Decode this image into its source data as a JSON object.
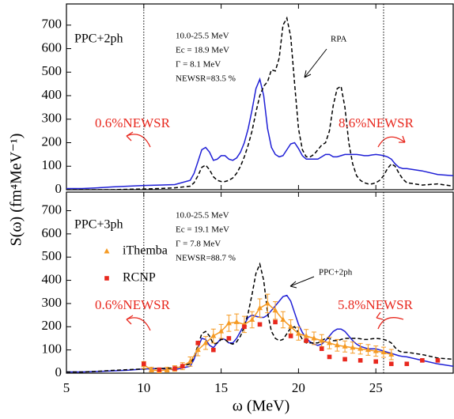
{
  "chart_data": [
    {
      "type": "line",
      "ylabel": "S(ω) (fm⁴MeV⁻¹)",
      "x": [
        5,
        6,
        7,
        8,
        9,
        10,
        11,
        12,
        13,
        13.25,
        13.5,
        13.75,
        14,
        14.25,
        14.5,
        14.75,
        15,
        15.25,
        15.5,
        15.75,
        16,
        16.25,
        16.5,
        16.75,
        17,
        17.25,
        17.5,
        17.75,
        18,
        18.25,
        18.5,
        18.75,
        19,
        19.25,
        19.5,
        19.75,
        20,
        20.25,
        20.5,
        20.75,
        21,
        21.25,
        21.5,
        21.75,
        22,
        22.25,
        22.5,
        22.75,
        23,
        23.25,
        23.5,
        23.75,
        24,
        24.25,
        24.5,
        24.75,
        25,
        25.25,
        25.5,
        25.75,
        26,
        26.25,
        26.5,
        26.75,
        27,
        28,
        29,
        30
      ],
      "xlim": [
        5,
        30
      ],
      "xticks": [
        5,
        10,
        15,
        20,
        25
      ],
      "ylim": [
        0,
        790
      ],
      "yticks": [
        0,
        100,
        200,
        300,
        400,
        500,
        600,
        700
      ],
      "vlines": [
        10,
        25.5
      ],
      "series": [
        {
          "name": "PPC+2ph",
          "color": "#1f1fd6",
          "dash": false,
          "values": [
            5,
            5,
            8,
            12,
            15,
            18,
            20,
            22,
            40,
            70,
            120,
            170,
            180,
            160,
            125,
            130,
            145,
            145,
            130,
            125,
            135,
            160,
            200,
            260,
            340,
            430,
            470,
            400,
            260,
            180,
            150,
            140,
            145,
            170,
            195,
            200,
            175,
            145,
            130,
            130,
            130,
            130,
            140,
            150,
            150,
            140,
            140,
            145,
            150,
            150,
            150,
            150,
            148,
            145,
            145,
            148,
            150,
            148,
            145,
            140,
            130,
            110,
            95,
            90,
            90,
            80,
            65,
            60
          ]
        },
        {
          "name": "RPA",
          "color": "#000000",
          "dash": true,
          "values": [
            0,
            0,
            0,
            0,
            2,
            3,
            5,
            8,
            15,
            30,
            60,
            95,
            105,
            85,
            55,
            40,
            35,
            35,
            40,
            50,
            70,
            100,
            140,
            190,
            250,
            330,
            400,
            440,
            460,
            510,
            505,
            560,
            700,
            730,
            650,
            450,
            260,
            170,
            140,
            140,
            150,
            170,
            190,
            200,
            250,
            360,
            430,
            440,
            350,
            200,
            110,
            60,
            40,
            30,
            25,
            25,
            30,
            40,
            60,
            90,
            110,
            100,
            70,
            45,
            30,
            20,
            25,
            15
          ]
        }
      ],
      "annotations": [
        "10.0-25.5 MeV",
        "Ec = 18.9 MeV",
        "Γ = 8.1 MeV",
        "NEWSR=83.5 %",
        "0.6%NEWSR",
        "8.6%NEWSR"
      ]
    },
    {
      "type": "line",
      "xlabel": "ω (MeV)",
      "x": [
        5,
        6,
        7,
        8,
        9,
        10,
        11,
        12,
        13,
        13.25,
        13.5,
        13.75,
        14,
        14.25,
        14.5,
        14.75,
        15,
        15.25,
        15.5,
        15.75,
        16,
        16.25,
        16.5,
        16.75,
        17,
        17.25,
        17.5,
        17.75,
        18,
        18.25,
        18.5,
        18.75,
        19,
        19.25,
        19.5,
        19.75,
        20,
        20.25,
        20.5,
        20.75,
        21,
        21.25,
        21.5,
        21.75,
        22,
        22.25,
        22.5,
        22.75,
        23,
        23.25,
        23.5,
        23.75,
        24,
        24.25,
        24.5,
        24.75,
        25,
        25.25,
        25.5,
        25.75,
        26,
        26.25,
        26.5,
        26.75,
        27,
        28,
        29,
        30
      ],
      "xlim": [
        5,
        30
      ],
      "xticks": [
        5,
        10,
        15,
        20,
        25
      ],
      "ylim": [
        0,
        780
      ],
      "yticks": [
        0,
        100,
        200,
        300,
        400,
        500,
        600,
        700
      ],
      "vlines": [
        10,
        25.5
      ],
      "series": [
        {
          "name": "PPC+3ph",
          "color": "#1f1fd6",
          "dash": false,
          "values": [
            5,
            5,
            7,
            10,
            13,
            18,
            20,
            15,
            30,
            60,
            110,
            150,
            145,
            120,
            110,
            130,
            150,
            145,
            130,
            130,
            150,
            180,
            210,
            240,
            250,
            245,
            240,
            240,
            250,
            270,
            290,
            310,
            330,
            335,
            310,
            260,
            210,
            175,
            150,
            135,
            125,
            120,
            125,
            140,
            160,
            180,
            190,
            190,
            180,
            160,
            140,
            125,
            115,
            110,
            105,
            105,
            105,
            100,
            95,
            90,
            85,
            80,
            75,
            72,
            70,
            55,
            40,
            30
          ]
        },
        {
          "name": "PPC+2ph",
          "color": "#000000",
          "dash": true,
          "values": [
            5,
            5,
            8,
            12,
            15,
            18,
            20,
            22,
            40,
            70,
            120,
            170,
            180,
            160,
            125,
            130,
            145,
            145,
            130,
            125,
            135,
            160,
            200,
            260,
            340,
            430,
            470,
            400,
            260,
            180,
            150,
            140,
            145,
            170,
            195,
            200,
            175,
            145,
            130,
            130,
            130,
            130,
            140,
            150,
            150,
            140,
            140,
            145,
            150,
            150,
            150,
            150,
            148,
            145,
            145,
            148,
            150,
            148,
            145,
            140,
            130,
            110,
            95,
            90,
            90,
            80,
            65,
            60
          ]
        },
        {
          "name": "iThemba",
          "color": "#f59a23",
          "marker": "triangle",
          "x": [
            10,
            10.5,
            11,
            11.5,
            12,
            12.5,
            13,
            13.5,
            14,
            14.5,
            15,
            15.5,
            16,
            16.5,
            17,
            17.5,
            18,
            18.5,
            19,
            19.5,
            20,
            20.5,
            21,
            21.5,
            22,
            22.5,
            23,
            23.5,
            24,
            24.5,
            25,
            25.5,
            26
          ],
          "values": [
            35,
            15,
            10,
            15,
            20,
            30,
            50,
            100,
            130,
            160,
            180,
            215,
            220,
            210,
            230,
            280,
            300,
            270,
            230,
            200,
            170,
            160,
            150,
            140,
            130,
            120,
            115,
            110,
            105,
            100,
            95,
            90,
            80
          ],
          "errors": [
            15,
            10,
            10,
            10,
            12,
            15,
            20,
            25,
            28,
            30,
            30,
            35,
            35,
            35,
            35,
            40,
            40,
            38,
            35,
            30,
            28,
            28,
            27,
            26,
            25,
            25,
            24,
            24,
            23,
            23,
            22,
            22,
            22
          ]
        },
        {
          "name": "RCNP",
          "color": "#e8281e",
          "marker": "square",
          "x": [
            10,
            11,
            12,
            12.5,
            13.5,
            14.5,
            15.5,
            16.5,
            17.5,
            18.5,
            19.5,
            20.5,
            21.5,
            22,
            23,
            24,
            25,
            26,
            27,
            28,
            29
          ],
          "values": [
            40,
            15,
            20,
            30,
            130,
            100,
            150,
            200,
            210,
            220,
            160,
            140,
            105,
            70,
            60,
            55,
            50,
            40,
            40,
            55,
            55
          ]
        }
      ],
      "annotations": [
        "10.0-25.5 MeV",
        "Ec = 19.1 MeV",
        "Γ = 7.8 MeV",
        "NEWSR=88.7 %",
        "0.6%NEWSR",
        "5.8%NEWSR"
      ]
    }
  ]
}
